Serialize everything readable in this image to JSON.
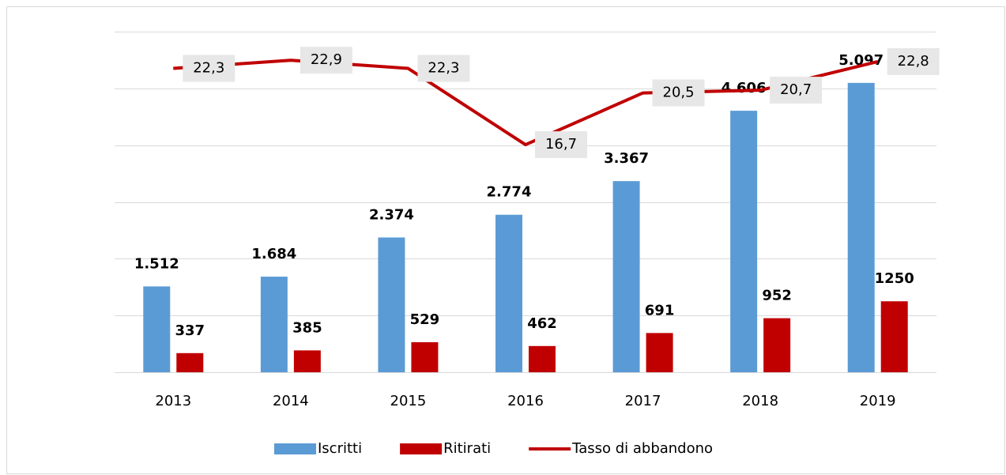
{
  "chart_data": {
    "type": "bar_line",
    "categories": [
      "2013",
      "2014",
      "2015",
      "2016",
      "2017",
      "2018",
      "2019"
    ],
    "series": [
      {
        "name": "Iscritti",
        "color": "#5b9bd5",
        "type": "bar",
        "values": [
          1512,
          1684,
          2374,
          2774,
          3367,
          4606,
          5097
        ],
        "value_labels": [
          "1.512",
          "1.684",
          "2.374",
          "2.774",
          "3.367",
          "4.606",
          "5.097"
        ]
      },
      {
        "name": "Ritirati",
        "color": "#c00000",
        "type": "bar",
        "values": [
          337,
          385,
          529,
          462,
          691,
          952,
          1250
        ]
      },
      {
        "name": "Tasso di abbandono",
        "color": "#c00000",
        "type": "line",
        "axis": "y2",
        "values": [
          22.3,
          22.9,
          22.3,
          16.7,
          20.5,
          20.7,
          22.8
        ],
        "value_labels": [
          "22,3",
          "22,9",
          "22,3",
          "16,7",
          "20,5",
          "20,7",
          "22,8"
        ]
      }
    ],
    "ylim": [
      0,
      6000
    ],
    "yticks": [
      0,
      1000,
      2000,
      3000,
      4000,
      5000,
      6000
    ],
    "y2lim": [
      0,
      25
    ],
    "grid": true,
    "legend": "bottom"
  }
}
